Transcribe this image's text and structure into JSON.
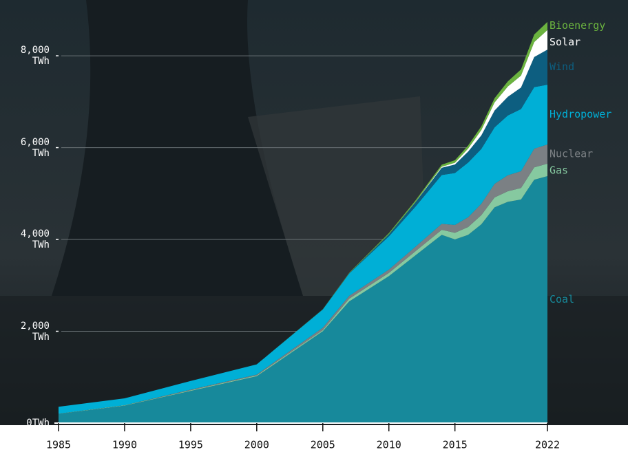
{
  "chart_data": {
    "type": "stacked-area",
    "x": [
      1985,
      1990,
      1995,
      2000,
      2005,
      2007,
      2010,
      2012,
      2014,
      2015,
      2016,
      2017,
      2018,
      2019,
      2020,
      2021,
      2022
    ],
    "series": [
      {
        "name": "Coal",
        "color": "#17899b",
        "values": [
          200,
          380,
          700,
          1020,
          2000,
          2650,
          3200,
          3650,
          4100,
          4000,
          4100,
          4330,
          4700,
          4820,
          4870,
          5300,
          5380
        ]
      },
      {
        "name": "Gas",
        "color": "#86c9a0",
        "values": [
          5,
          10,
          15,
          20,
          25,
          60,
          70,
          90,
          110,
          145,
          170,
          200,
          215,
          230,
          250,
          270,
          270
        ]
      },
      {
        "name": "Nuclear",
        "color": "#7b8084",
        "values": [
          0,
          0,
          13,
          17,
          53,
          62,
          74,
          97,
          130,
          171,
          213,
          248,
          295,
          348,
          366,
          407,
          418
        ]
      },
      {
        "name": "Hydropower",
        "color": "#00afd6",
        "values": [
          150,
          150,
          190,
          222,
          397,
          486,
          722,
          873,
          1064,
          1130,
          1193,
          1194,
          1232,
          1302,
          1355,
          1340,
          1303
        ]
      },
      {
        "name": "Wind",
        "color": "#0d5e80",
        "values": [
          0,
          0,
          0,
          1,
          2,
          6,
          45,
          96,
          156,
          186,
          237,
          295,
          366,
          406,
          467,
          656,
          763
        ]
      },
      {
        "name": "Solar",
        "color": "#ffffff",
        "values": [
          0,
          0,
          0,
          0,
          0,
          0,
          1,
          4,
          24,
          40,
          67,
          118,
          177,
          224,
          261,
          327,
          428
        ]
      },
      {
        "name": "Bioenergy",
        "color": "#6bb33f",
        "values": [
          0,
          0,
          0,
          0,
          5,
          10,
          25,
          33,
          45,
          53,
          65,
          80,
          91,
          112,
          135,
          164,
          176
        ]
      }
    ],
    "xlim": [
      1985,
      2022
    ],
    "xticks": [
      1985,
      1990,
      1995,
      2000,
      2005,
      2010,
      2015,
      2022
    ],
    "ylim": [
      0,
      9200
    ],
    "yticks": [
      {
        "value": 0,
        "label": "0TWh"
      },
      {
        "value": 2000,
        "label": "2,000 TWh"
      },
      {
        "value": 4000,
        "label": "4,000 TWh"
      },
      {
        "value": 6000,
        "label": "6,000 TWh"
      },
      {
        "value": 8000,
        "label": "8,000 TWh"
      }
    ],
    "grid": true
  }
}
